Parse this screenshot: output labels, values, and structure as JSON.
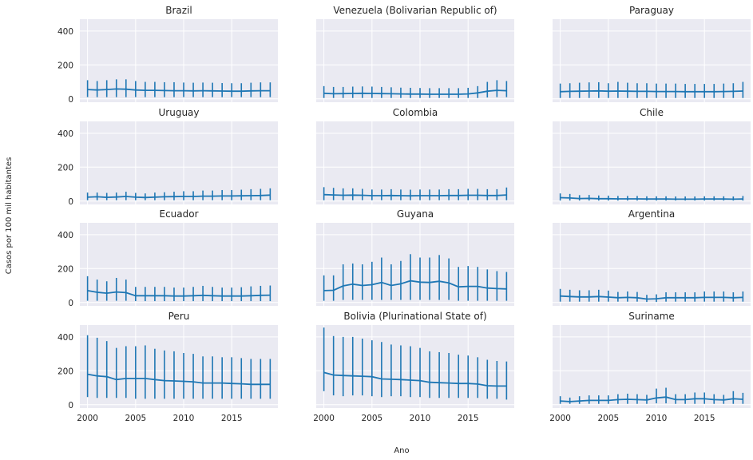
{
  "figure": {
    "xlabel": "Ano",
    "ylabel": "Casos por 100 mil habitantes",
    "x_ticks": [
      2000,
      2005,
      2010,
      2015
    ],
    "y_ticks": [
      0,
      200,
      400
    ]
  },
  "colors": {
    "background": "#eaeaf2",
    "grid": "#ffffff",
    "series": "#1f77b4",
    "text": "#262626"
  },
  "chart_data": {
    "type": "line",
    "subtype": "error-bar small multiples",
    "rows": 4,
    "cols": 3,
    "x": [
      2000,
      2001,
      2002,
      2003,
      2004,
      2005,
      2006,
      2007,
      2008,
      2009,
      2010,
      2011,
      2012,
      2013,
      2014,
      2015,
      2016,
      2017,
      2018,
      2019
    ],
    "xlim": [
      1999.2,
      2019.8
    ],
    "ylim": [
      -20,
      470
    ],
    "grid": true,
    "shared_x": true,
    "shared_y": true,
    "panels": [
      {
        "title": "Brazil",
        "values": [
          55,
          52,
          55,
          58,
          57,
          52,
          50,
          50,
          49,
          48,
          48,
          47,
          48,
          47,
          46,
          45,
          45,
          47,
          48,
          48
        ],
        "lower": [
          10,
          10,
          10,
          10,
          10,
          10,
          10,
          10,
          10,
          10,
          10,
          10,
          10,
          10,
          10,
          10,
          10,
          10,
          10,
          10
        ],
        "upper": [
          110,
          105,
          110,
          115,
          115,
          105,
          100,
          100,
          98,
          98,
          96,
          95,
          96,
          95,
          93,
          92,
          92,
          95,
          97,
          97
        ]
      },
      {
        "title": "Venezuela (Bolivarian Republic of)",
        "values": [
          33,
          30,
          31,
          32,
          33,
          32,
          31,
          30,
          29,
          28,
          28,
          27,
          27,
          27,
          27,
          29,
          35,
          45,
          50,
          48
        ],
        "lower": [
          5,
          5,
          5,
          5,
          5,
          5,
          5,
          5,
          5,
          5,
          5,
          5,
          5,
          5,
          5,
          5,
          5,
          8,
          10,
          10
        ],
        "upper": [
          75,
          70,
          70,
          72,
          73,
          72,
          70,
          68,
          66,
          65,
          64,
          63,
          63,
          63,
          63,
          65,
          75,
          100,
          110,
          105
        ]
      },
      {
        "title": "Paraguay",
        "values": [
          42,
          44,
          45,
          46,
          47,
          45,
          46,
          45,
          44,
          44,
          43,
          43,
          43,
          42,
          42,
          42,
          42,
          43,
          44,
          46
        ],
        "lower": [
          5,
          5,
          5,
          5,
          5,
          5,
          5,
          5,
          5,
          5,
          5,
          5,
          5,
          5,
          5,
          5,
          5,
          5,
          5,
          5
        ],
        "upper": [
          90,
          92,
          95,
          97,
          98,
          92,
          100,
          95,
          92,
          92,
          90,
          90,
          90,
          88,
          88,
          88,
          88,
          90,
          92,
          100
        ]
      },
      {
        "title": "Uruguay",
        "values": [
          23,
          25,
          22,
          24,
          27,
          23,
          21,
          23,
          25,
          26,
          27,
          27,
          29,
          29,
          30,
          30,
          31,
          32,
          33,
          35
        ],
        "lower": [
          5,
          5,
          5,
          5,
          5,
          5,
          5,
          5,
          5,
          5,
          5,
          5,
          5,
          5,
          5,
          5,
          5,
          5,
          5,
          5
        ],
        "upper": [
          50,
          50,
          48,
          50,
          55,
          48,
          45,
          50,
          52,
          55,
          58,
          58,
          62,
          62,
          65,
          65,
          67,
          70,
          72,
          75
        ]
      },
      {
        "title": "Colombia",
        "values": [
          38,
          36,
          34,
          35,
          34,
          32,
          32,
          33,
          32,
          31,
          32,
          32,
          32,
          33,
          33,
          34,
          34,
          33,
          33,
          36
        ],
        "lower": [
          5,
          5,
          5,
          5,
          5,
          5,
          5,
          5,
          5,
          5,
          5,
          5,
          5,
          5,
          5,
          5,
          5,
          5,
          5,
          5
        ],
        "upper": [
          82,
          78,
          75,
          75,
          72,
          68,
          68,
          70,
          68,
          67,
          68,
          68,
          68,
          70,
          70,
          72,
          72,
          70,
          70,
          80
        ]
      },
      {
        "title": "Chile",
        "values": [
          20,
          18,
          15,
          16,
          14,
          14,
          13,
          13,
          13,
          12,
          12,
          12,
          11,
          11,
          11,
          12,
          12,
          12,
          11,
          12
        ],
        "lower": [
          3,
          3,
          3,
          3,
          3,
          3,
          3,
          3,
          3,
          3,
          3,
          3,
          3,
          3,
          3,
          3,
          3,
          3,
          3,
          3
        ],
        "upper": [
          45,
          42,
          35,
          36,
          33,
          32,
          30,
          30,
          30,
          28,
          28,
          28,
          27,
          27,
          27,
          28,
          28,
          28,
          27,
          30
        ]
      },
      {
        "title": "Ecuador",
        "values": [
          70,
          60,
          55,
          62,
          58,
          40,
          40,
          40,
          40,
          38,
          38,
          40,
          42,
          40,
          38,
          38,
          38,
          40,
          42,
          43
        ],
        "lower": [
          10,
          10,
          10,
          10,
          10,
          8,
          8,
          8,
          8,
          8,
          8,
          8,
          8,
          8,
          8,
          8,
          8,
          8,
          8,
          8
        ],
        "upper": [
          155,
          135,
          125,
          145,
          135,
          92,
          92,
          92,
          92,
          88,
          88,
          92,
          98,
          92,
          88,
          88,
          90,
          95,
          98,
          100
        ]
      },
      {
        "title": "Guyana",
        "values": [
          70,
          72,
          98,
          108,
          100,
          105,
          118,
          100,
          110,
          128,
          120,
          118,
          125,
          115,
          92,
          95,
          95,
          85,
          82,
          80
        ],
        "lower": [
          10,
          10,
          15,
          15,
          15,
          15,
          15,
          15,
          15,
          15,
          15,
          15,
          15,
          15,
          10,
          10,
          10,
          10,
          10,
          10
        ],
        "upper": [
          160,
          160,
          225,
          230,
          225,
          240,
          265,
          225,
          245,
          285,
          265,
          265,
          280,
          260,
          210,
          215,
          210,
          195,
          185,
          180
        ]
      },
      {
        "title": "Argentina",
        "values": [
          38,
          35,
          33,
          33,
          35,
          32,
          28,
          30,
          28,
          20,
          22,
          28,
          28,
          28,
          28,
          30,
          30,
          30,
          28,
          30
        ],
        "lower": [
          5,
          5,
          5,
          5,
          5,
          5,
          5,
          5,
          5,
          3,
          3,
          5,
          5,
          5,
          5,
          5,
          5,
          5,
          5,
          5
        ],
        "upper": [
          80,
          75,
          72,
          72,
          75,
          70,
          62,
          65,
          62,
          45,
          48,
          60,
          60,
          60,
          60,
          65,
          65,
          65,
          60,
          65
        ]
      },
      {
        "title": "Peru",
        "values": [
          180,
          170,
          165,
          148,
          155,
          155,
          155,
          148,
          142,
          140,
          138,
          135,
          128,
          128,
          128,
          125,
          123,
          120,
          120,
          120
        ],
        "lower": [
          45,
          40,
          40,
          40,
          40,
          35,
          35,
          35,
          35,
          35,
          35,
          35,
          35,
          35,
          35,
          35,
          35,
          35,
          35,
          35
        ],
        "upper": [
          410,
          395,
          375,
          335,
          345,
          345,
          350,
          330,
          320,
          315,
          305,
          300,
          285,
          285,
          280,
          280,
          275,
          270,
          270,
          270
        ]
      },
      {
        "title": "Bolivia (Plurinational State of)",
        "values": [
          190,
          175,
          172,
          170,
          168,
          165,
          152,
          150,
          148,
          145,
          142,
          132,
          130,
          128,
          125,
          125,
          122,
          112,
          110,
          110
        ],
        "lower": [
          80,
          55,
          50,
          55,
          55,
          50,
          45,
          50,
          50,
          45,
          45,
          40,
          40,
          40,
          40,
          40,
          40,
          35,
          35,
          30
        ],
        "upper": [
          455,
          405,
          400,
          400,
          390,
          380,
          370,
          355,
          350,
          345,
          335,
          315,
          310,
          305,
          295,
          290,
          280,
          265,
          258,
          255
        ]
      },
      {
        "title": "Suriname",
        "values": [
          22,
          18,
          22,
          25,
          25,
          25,
          30,
          32,
          30,
          28,
          40,
          45,
          30,
          30,
          35,
          35,
          30,
          28,
          35,
          32
        ],
        "lower": [
          5,
          5,
          5,
          5,
          5,
          5,
          5,
          5,
          5,
          5,
          8,
          8,
          5,
          5,
          5,
          5,
          5,
          5,
          5,
          5
        ],
        "upper": [
          50,
          42,
          50,
          55,
          55,
          55,
          62,
          65,
          62,
          58,
          95,
          100,
          62,
          62,
          72,
          72,
          62,
          58,
          80,
          70
        ]
      }
    ]
  }
}
